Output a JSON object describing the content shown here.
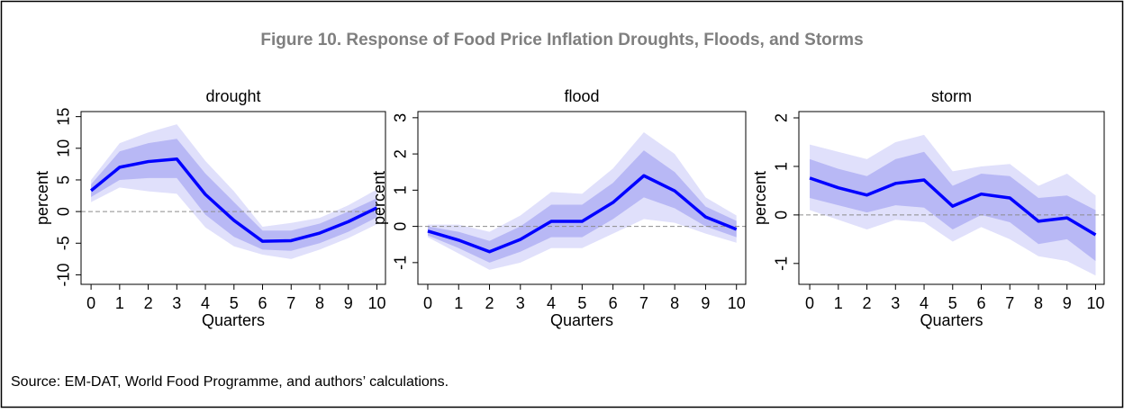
{
  "title": "Figure 10. Response of Food Price Inflation Droughts, Floods, and Storms",
  "source": "Source: EM-DAT, World Food Programme, and authors’ calculations.",
  "chart_data": [
    {
      "type": "line",
      "title": "drought",
      "xlabel": "Quarters",
      "ylabel": "percent",
      "x": [
        0,
        1,
        2,
        3,
        4,
        5,
        6,
        7,
        8,
        9,
        10
      ],
      "xlim": [
        -0.35,
        10.3
      ],
      "xticks": [
        0,
        1,
        2,
        3,
        4,
        5,
        6,
        7,
        8,
        9,
        10
      ],
      "ylim": [
        -11.5,
        15.8
      ],
      "yticks": [
        -10,
        -5,
        0,
        5,
        10,
        15
      ],
      "reference_line": 0,
      "values": [
        3.3,
        7.0,
        7.9,
        8.3,
        2.7,
        -1.4,
        -4.7,
        -4.6,
        -3.4,
        -1.6,
        0.6
      ],
      "color": "#0000ff",
      "bands": [
        {
          "lower": [
            1.5,
            3.8,
            3.2,
            2.8,
            -2.5,
            -5.5,
            -6.8,
            -7.5,
            -6,
            -4.2,
            -2
          ],
          "upper": [
            5,
            10.8,
            12.5,
            13.8,
            8,
            3.2,
            -2.4,
            -1.8,
            -1,
            1,
            3.5
          ],
          "color": "#e0e0fb"
        },
        {
          "lower": [
            2.3,
            5,
            5.3,
            5.3,
            -0.5,
            -4,
            -6,
            -6.2,
            -5,
            -3.2,
            -0.9
          ],
          "upper": [
            4.3,
            9.5,
            10.8,
            11.5,
            6,
            1.5,
            -3,
            -3,
            -1.9,
            0,
            2.1
          ],
          "color": "#b8b8f5"
        }
      ]
    },
    {
      "type": "line",
      "title": "flood",
      "xlabel": "Quarters",
      "ylabel": "percent",
      "x": [
        0,
        1,
        2,
        3,
        4,
        5,
        6,
        7,
        8,
        9,
        10
      ],
      "xlim": [
        -0.32,
        10.3
      ],
      "xticks": [
        0,
        1,
        2,
        3,
        4,
        5,
        6,
        7,
        8,
        9,
        10
      ],
      "ylim": [
        -1.6,
        3.17
      ],
      "yticks": [
        -1,
        0,
        1,
        2,
        3
      ],
      "reference_line": 0,
      "values": [
        -0.13,
        -0.38,
        -0.7,
        -0.36,
        0.14,
        0.14,
        0.66,
        1.4,
        0.98,
        0.26,
        -0.08
      ],
      "color": "#0000ff",
      "bands": [
        {
          "lower": [
            -0.3,
            -0.75,
            -1.2,
            -1,
            -0.6,
            -0.6,
            -0.2,
            0.2,
            0.1,
            -0.2,
            -0.45
          ],
          "upper": [
            0.05,
            0.05,
            -0.15,
            0.3,
            0.95,
            0.9,
            1.6,
            2.6,
            2,
            0.8,
            0.3
          ],
          "color": "#e0e0fb"
        },
        {
          "lower": [
            -0.25,
            -0.6,
            -1,
            -0.7,
            -0.3,
            -0.3,
            0.2,
            0.8,
            0.5,
            0,
            -0.3
          ],
          "upper": [
            0,
            -0.15,
            -0.4,
            0,
            0.6,
            0.6,
            1.2,
            2.1,
            1.5,
            0.55,
            0.15
          ],
          "color": "#b8b8f5"
        }
      ]
    },
    {
      "type": "line",
      "title": "storm",
      "xlabel": "Quarters",
      "ylabel": "percent",
      "x": [
        0,
        1,
        2,
        3,
        4,
        5,
        6,
        7,
        8,
        9,
        10
      ],
      "xlim": [
        -0.38,
        10.3
      ],
      "xticks": [
        0,
        1,
        2,
        3,
        4,
        5,
        6,
        7,
        8,
        9,
        10
      ],
      "ylim": [
        -1.43,
        2.13
      ],
      "yticks": [
        -1,
        0,
        1,
        2
      ],
      "reference_line": 0,
      "values": [
        0.76,
        0.56,
        0.41,
        0.65,
        0.72,
        0.18,
        0.43,
        0.35,
        -0.13,
        -0.06,
        -0.41
      ],
      "color": "#0000ff",
      "bands": [
        {
          "lower": [
            0.1,
            -0.1,
            -0.3,
            -0.1,
            -0.15,
            -0.55,
            -0.25,
            -0.5,
            -0.85,
            -0.95,
            -1.25
          ],
          "upper": [
            1.45,
            1.3,
            1.15,
            1.5,
            1.65,
            0.9,
            1,
            1.05,
            0.6,
            0.85,
            0.4
          ],
          "color": "#e0e0fb"
        },
        {
          "lower": [
            0.35,
            0.2,
            0.05,
            0.2,
            0.15,
            -0.3,
            0,
            -0.15,
            -0.6,
            -0.5,
            -0.95
          ],
          "upper": [
            1.15,
            0.95,
            0.8,
            1.15,
            1.3,
            0.6,
            0.85,
            0.8,
            0.35,
            0.4,
            0.1
          ],
          "color": "#b8b8f5"
        }
      ]
    }
  ]
}
